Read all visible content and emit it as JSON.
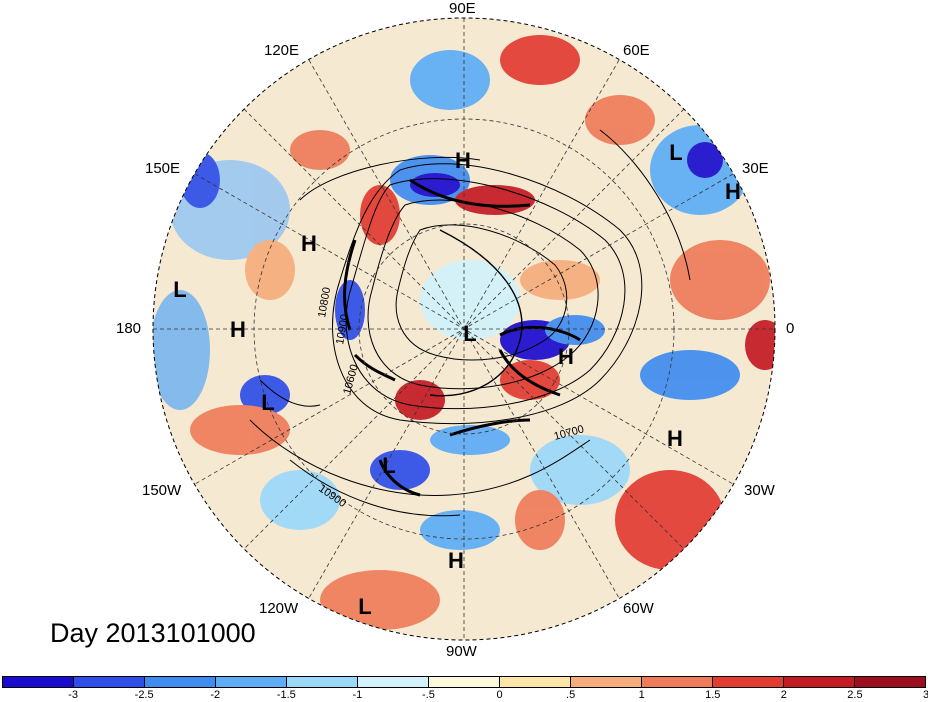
{
  "title_date": "Day 2013101000",
  "longitude_labels": {
    "e90": "90E",
    "e60": "60E",
    "e120": "120E",
    "e150": "150E",
    "e30": "30E",
    "lon180": "180",
    "lon0": "0",
    "w150": "150W",
    "w30": "30W",
    "w120": "120W",
    "w60": "60W",
    "w90": "90W"
  },
  "pressure_centers": [
    {
      "id": "h1",
      "label": "H"
    },
    {
      "id": "h2",
      "label": "H"
    },
    {
      "id": "h3",
      "label": "H"
    },
    {
      "id": "h4",
      "label": "H"
    },
    {
      "id": "h5",
      "label": "H"
    },
    {
      "id": "h6",
      "label": "H"
    },
    {
      "id": "h7",
      "label": "H"
    },
    {
      "id": "l1",
      "label": "L"
    },
    {
      "id": "l2",
      "label": "L"
    },
    {
      "id": "l3",
      "label": "L"
    },
    {
      "id": "l4",
      "label": "L"
    },
    {
      "id": "l5",
      "label": "L"
    },
    {
      "id": "l6",
      "label": "L"
    }
  ],
  "contour_labels": [
    "10800",
    "10900",
    "10600",
    "10700",
    "10900"
  ],
  "colorbar": {
    "colors": [
      "#1a0ccf",
      "#2d4ee8",
      "#3f8cf0",
      "#5cacf6",
      "#9ad8fa",
      "#d2f2fb",
      "#fbf8dc",
      "#fbe5a8",
      "#f6ad7c",
      "#ee7c5a",
      "#e23b32",
      "#c41a24",
      "#9c0e1e"
    ],
    "labels": [
      "-3",
      "-2.5",
      "-2",
      "-1.5",
      "-1",
      "-.5",
      "0",
      ".5",
      "1",
      "1.5",
      "2",
      "2.5",
      "3"
    ]
  }
}
